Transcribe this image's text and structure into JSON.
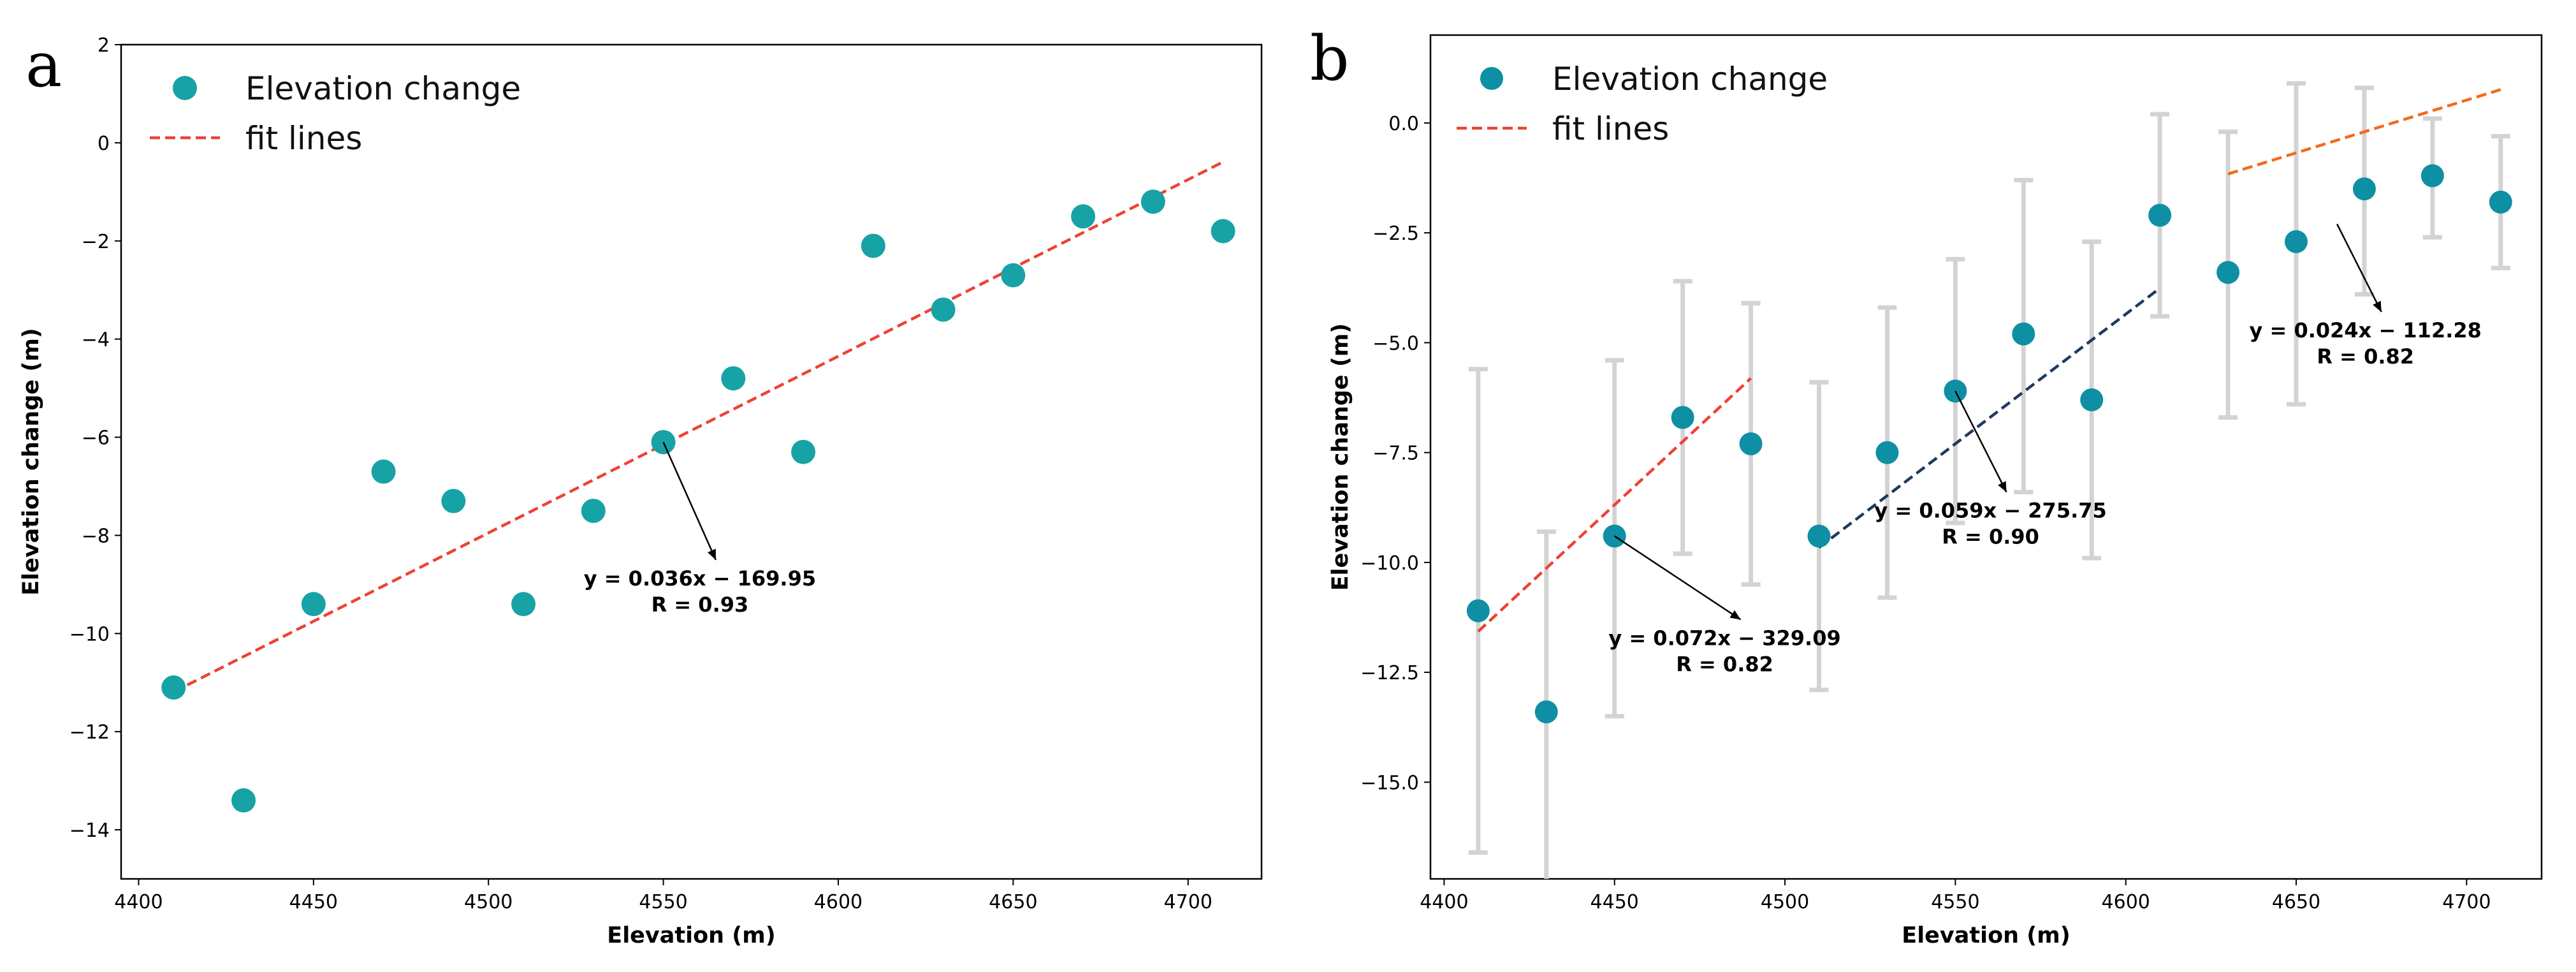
{
  "colors": {
    "point": "#17a2a6",
    "point_b": "#0f8fa3",
    "fit_red": "#ef4136",
    "fit_navy": "#1f3a5f",
    "fit_orange": "#f26a1b",
    "errorbar": "#d3d3d3",
    "axis": "#000000"
  },
  "chart_data": [
    {
      "type": "scatter",
      "panel_label": "a",
      "xlabel": "Elevation (m)",
      "ylabel": "Elevation change (m)",
      "xlim": [
        4395,
        4721
      ],
      "ylim": [
        -15.0,
        2.0
      ],
      "xticks": [
        4400,
        4450,
        4500,
        4550,
        4600,
        4650,
        4700
      ],
      "yticks": [
        2,
        0,
        -2,
        -4,
        -6,
        -8,
        -10,
        -12,
        -14
      ],
      "ytick_labels": [
        "2",
        "0",
        "−2",
        "−4",
        "−6",
        "−8",
        "−10",
        "−12",
        "−14"
      ],
      "legend": {
        "position": "top-left",
        "entries": [
          {
            "label": "Elevation change",
            "kind": "marker"
          },
          {
            "label": "fit lines",
            "kind": "dashed-line"
          }
        ]
      },
      "series": [
        {
          "name": "Elevation change",
          "x": [
            4410,
            4430,
            4450,
            4470,
            4490,
            4510,
            4530,
            4550,
            4570,
            4590,
            4610,
            4630,
            4650,
            4670,
            4690,
            4710
          ],
          "y": [
            -11.1,
            -13.4,
            -9.4,
            -6.7,
            -7.3,
            -9.4,
            -7.5,
            -6.1,
            -4.8,
            -6.3,
            -2.1,
            -3.4,
            -2.7,
            -1.5,
            -1.2,
            -1.8
          ]
        }
      ],
      "fits": [
        {
          "slope": 0.036,
          "intercept": -169.95,
          "x_range": [
            4410,
            4710
          ],
          "color": "fit_red"
        }
      ],
      "annotations": [
        {
          "line1": "y = 0.036x − 169.95",
          "line2": "R = 0.93",
          "point": [
            4550,
            -6.1
          ],
          "text_anchor": [
            4565,
            -8.5
          ]
        }
      ]
    },
    {
      "type": "scatter",
      "panel_label": "b",
      "xlabel": "Elevation (m)",
      "ylabel": "Elevation change (m)",
      "xlim": [
        4396,
        4722
      ],
      "ylim": [
        -17.2,
        2.0
      ],
      "xticks": [
        4400,
        4450,
        4500,
        4550,
        4600,
        4650,
        4700
      ],
      "yticks": [
        0.0,
        -2.5,
        -5.0,
        -7.5,
        -10.0,
        -12.5,
        -15.0
      ],
      "ytick_labels": [
        "0.0",
        "−2.5",
        "−5.0",
        "−7.5",
        "−10.0",
        "−12.5",
        "−15.0"
      ],
      "legend": {
        "position": "top-left",
        "entries": [
          {
            "label": "Elevation change",
            "kind": "marker"
          },
          {
            "label": "fit lines",
            "kind": "dashed-line"
          }
        ]
      },
      "series": [
        {
          "name": "Elevation change",
          "x": [
            4410,
            4430,
            4450,
            4470,
            4490,
            4510,
            4530,
            4550,
            4570,
            4590,
            4610,
            4630,
            4650,
            4670,
            4690,
            4710
          ],
          "y": [
            -11.1,
            -13.4,
            -9.4,
            -6.7,
            -7.3,
            -9.4,
            -7.5,
            -6.1,
            -4.8,
            -6.3,
            -2.1,
            -3.4,
            -2.7,
            -1.5,
            -1.2,
            -1.8
          ],
          "err_low": [
            -16.6,
            -17.5,
            -13.5,
            -9.8,
            -10.5,
            -12.9,
            -10.8,
            -9.1,
            -8.4,
            -9.9,
            -4.4,
            -6.7,
            -6.4,
            -3.9,
            -2.6,
            -3.3
          ],
          "err_high": [
            -5.6,
            -9.3,
            -5.4,
            -3.6,
            -4.1,
            -5.9,
            -4.2,
            -3.1,
            -1.3,
            -2.7,
            0.2,
            -0.2,
            0.9,
            0.8,
            0.1,
            -0.3
          ]
        }
      ],
      "fits": [
        {
          "slope": 0.072,
          "intercept": -329.09,
          "x_range": [
            4410,
            4490
          ],
          "color": "fit_red"
        },
        {
          "slope": 0.059,
          "intercept": -275.75,
          "x_range": [
            4510,
            4610
          ],
          "color": "fit_navy"
        },
        {
          "slope": 0.024,
          "intercept": -112.28,
          "x_range": [
            4630,
            4710
          ],
          "color": "fit_orange"
        }
      ],
      "annotations": [
        {
          "line1": "y = 0.072x − 329.09",
          "line2": "R = 0.82",
          "point": [
            4450,
            -9.4
          ],
          "text_anchor": [
            4487,
            -11.3
          ]
        },
        {
          "line1": "y = 0.059x − 275.75",
          "line2": "R = 0.90",
          "point": [
            4550,
            -6.1
          ],
          "text_anchor": [
            4565,
            -8.4
          ]
        },
        {
          "line1": "y = 0.024x − 112.28",
          "line2": "R = 0.82",
          "point": [
            4662,
            -2.3
          ],
          "text_anchor": [
            4675,
            -4.3
          ]
        }
      ]
    }
  ]
}
